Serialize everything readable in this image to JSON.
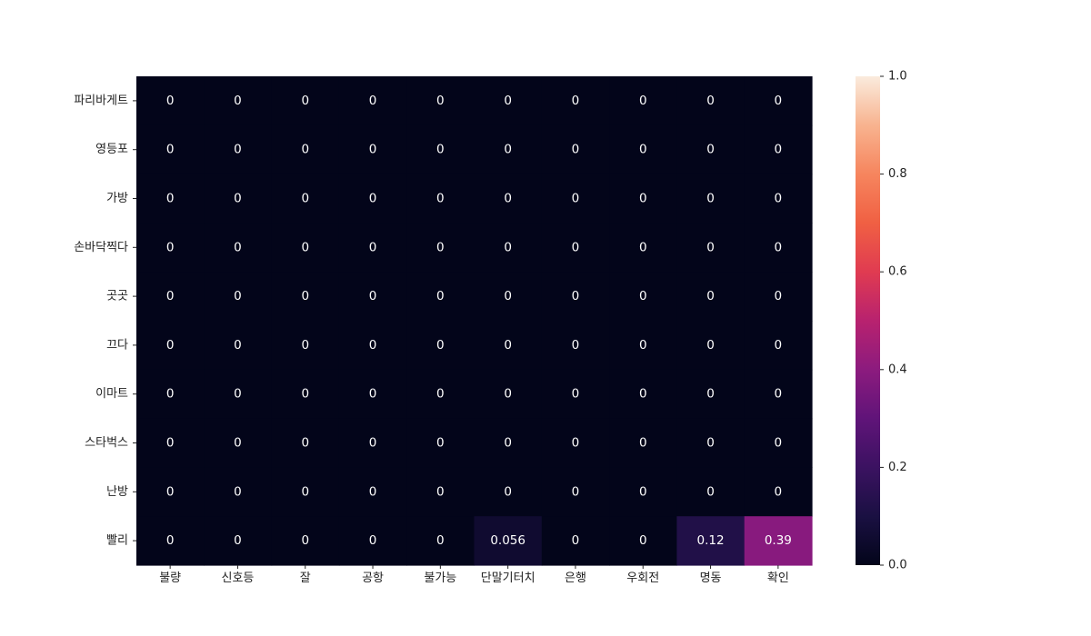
{
  "chart_data": {
    "type": "heatmap",
    "title": "",
    "xlabel": "",
    "ylabel": "",
    "x_categories": [
      "불량",
      "신호등",
      "잘",
      "공항",
      "불가능",
      "단말기터치",
      "은행",
      "우회전",
      "명동",
      "확인"
    ],
    "y_categories": [
      "파리바게트",
      "영등포",
      "가방",
      "손바닥찍다",
      "곳곳",
      "끄다",
      "이마트",
      "스타벅스",
      "난방",
      "빨리"
    ],
    "values": [
      [
        0,
        0,
        0,
        0,
        0,
        0,
        0,
        0,
        0,
        0
      ],
      [
        0,
        0,
        0,
        0,
        0,
        0,
        0,
        0,
        0,
        0
      ],
      [
        0,
        0,
        0,
        0,
        0,
        0,
        0,
        0,
        0,
        0
      ],
      [
        0,
        0,
        0,
        0,
        0,
        0,
        0,
        0,
        0,
        0
      ],
      [
        0,
        0,
        0,
        0,
        0,
        0,
        0,
        0,
        0,
        0
      ],
      [
        0,
        0,
        0,
        0,
        0,
        0,
        0,
        0,
        0,
        0
      ],
      [
        0,
        0,
        0,
        0,
        0,
        0,
        0,
        0,
        0,
        0
      ],
      [
        0,
        0,
        0,
        0,
        0,
        0,
        0,
        0,
        0,
        0
      ],
      [
        0,
        0,
        0,
        0,
        0,
        0,
        0,
        0,
        0,
        0
      ],
      [
        0,
        0,
        0,
        0,
        0,
        0.056,
        0,
        0,
        0.12,
        0.39
      ]
    ],
    "value_labels": [
      [
        "0",
        "0",
        "0",
        "0",
        "0",
        "0",
        "0",
        "0",
        "0",
        "0"
      ],
      [
        "0",
        "0",
        "0",
        "0",
        "0",
        "0",
        "0",
        "0",
        "0",
        "0"
      ],
      [
        "0",
        "0",
        "0",
        "0",
        "0",
        "0",
        "0",
        "0",
        "0",
        "0"
      ],
      [
        "0",
        "0",
        "0",
        "0",
        "0",
        "0",
        "0",
        "0",
        "0",
        "0"
      ],
      [
        "0",
        "0",
        "0",
        "0",
        "0",
        "0",
        "0",
        "0",
        "0",
        "0"
      ],
      [
        "0",
        "0",
        "0",
        "0",
        "0",
        "0",
        "0",
        "0",
        "0",
        "0"
      ],
      [
        "0",
        "0",
        "0",
        "0",
        "0",
        "0",
        "0",
        "0",
        "0",
        "0"
      ],
      [
        "0",
        "0",
        "0",
        "0",
        "0",
        "0",
        "0",
        "0",
        "0",
        "0"
      ],
      [
        "0",
        "0",
        "0",
        "0",
        "0",
        "0",
        "0",
        "0",
        "0",
        "0"
      ],
      [
        "0",
        "0",
        "0",
        "0",
        "0",
        "0.056",
        "0",
        "0",
        "0.12",
        "0.39"
      ]
    ],
    "colorbar": {
      "vmin": 0.0,
      "vmax": 1.0,
      "ticks": [
        "0.0",
        "0.2",
        "0.4",
        "0.6",
        "0.8",
        "1.0"
      ],
      "colormap": "rocket"
    },
    "grid": false,
    "annotated": true
  }
}
